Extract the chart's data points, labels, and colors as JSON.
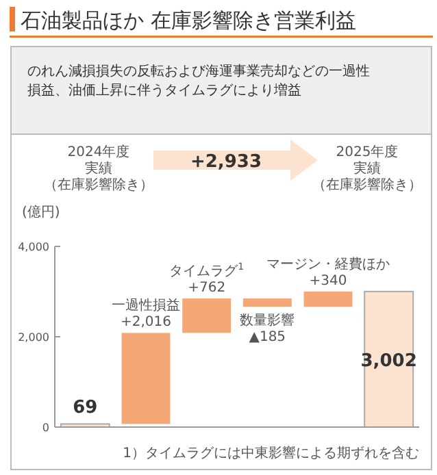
{
  "chart_data": {
    "type": "bar",
    "title": "石油製品ほか 在庫影響除き営業利益",
    "subtitle": "のれん減損損失の反転および海運事業売却などの一過性損益、油価上昇に伴うタイムラグにより増益",
    "ylabel": "(億円)",
    "categories": [
      null,
      "一過性損益",
      "タイムラグ$^{1}$",
      "数量影響",
      "マージン・経費ほか",
      null
    ],
    "values": [
      69,
      2016,
      762,
      -185,
      340,
      3002
    ],
    "base": [
      0,
      69,
      2085,
      2847,
      2662,
      0
    ],
    "value_labels": [
      "69",
      "+2,016",
      "+762",
      "▲185",
      "+340",
      "3,002"
    ],
    "colors": [
      "#fbe3d0",
      "#f4a878",
      "#f4a878",
      "#f4a878",
      "#f4a878",
      "#fbe3d0"
    ],
    "ylim": [
      0,
      4000
    ],
    "yticks": [
      {
        "value": 0,
        "label": "0"
      },
      {
        "value": 2000,
        "label": "2,000"
      },
      {
        "value": 4000,
        "label": "4,000"
      }
    ],
    "annotations": [
      "2024年度",
      "実績",
      "（在庫影響除き）",
      "+2,933",
      "2025年度",
      "実績",
      "（在庫影響除き）",
      "1）タイムラグには中東影響による期ずれを含む"
    ]
  }
}
